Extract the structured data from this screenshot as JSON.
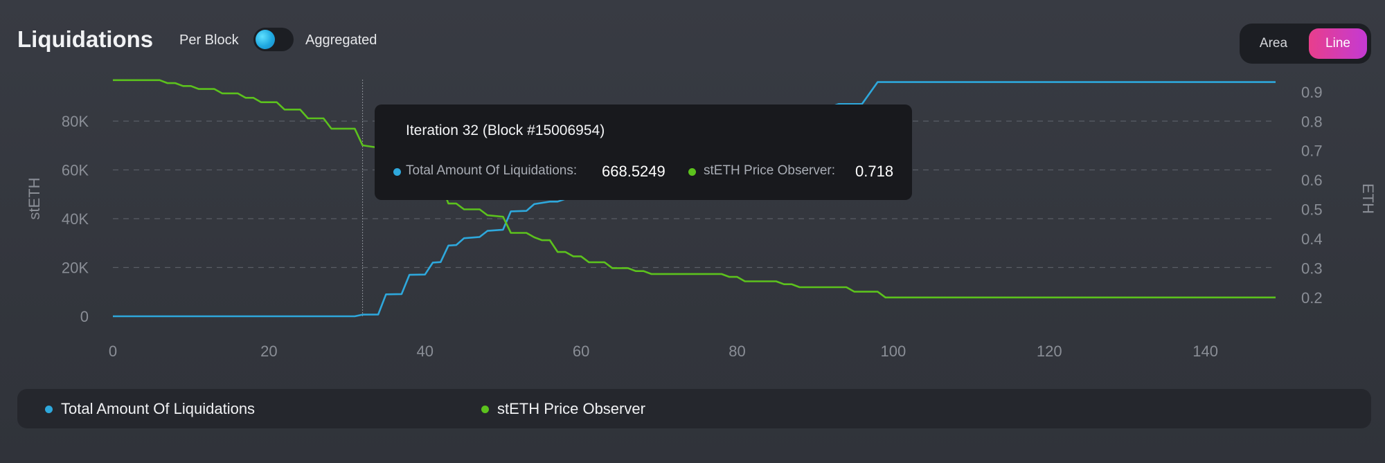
{
  "header": {
    "title": "Liquidations",
    "toggle_left_label": "Per Block",
    "toggle_right_label": "Aggregated",
    "mode_area_label": "Area",
    "mode_line_label": "Line"
  },
  "colors": {
    "liquidations": "#2ea8dc",
    "price": "#5cc21d",
    "accent": "#e83e8c"
  },
  "tooltip": {
    "title": "Iteration 32 (Block #15006954)",
    "series1_label": "Total Amount Of Liquidations:",
    "series1_value": "668.5249",
    "series2_label": "stETH Price Observer:",
    "series2_value": "0.718",
    "x": 32
  },
  "legend": {
    "item1": "Total Amount Of Liquidations",
    "item2": "stETH Price Observer"
  },
  "chart_data": {
    "type": "line",
    "xlim": [
      0,
      149
    ],
    "x_ticks": [
      "0",
      "20",
      "40",
      "60",
      "80",
      "100",
      "120",
      "140"
    ],
    "x_tick_values": [
      0,
      20,
      40,
      60,
      80,
      100,
      120,
      140
    ],
    "y_left": {
      "label": "stETH",
      "ticks": [
        "0",
        "20K",
        "40K",
        "60K",
        "80K"
      ],
      "tick_values": [
        0,
        20000,
        40000,
        60000,
        80000
      ],
      "lim": [
        0,
        96000
      ]
    },
    "y_right": {
      "label": "ETH",
      "ticks": [
        "0.2",
        "0.3",
        "0.4",
        "0.5",
        "0.6",
        "0.7",
        "0.8",
        "0.9"
      ],
      "tick_values": [
        0.2,
        0.3,
        0.4,
        0.5,
        0.6,
        0.7,
        0.8,
        0.9
      ],
      "lim": [
        0.136,
        0.942
      ]
    },
    "grid": "horizontal dashed",
    "legend_position": "bottom",
    "series": [
      {
        "name": "Total Amount Of Liquidations",
        "axis": "left",
        "points": [
          [
            0,
            0
          ],
          [
            31,
            0
          ],
          [
            32,
            668.5
          ],
          [
            34,
            700
          ],
          [
            35,
            9000
          ],
          [
            37,
            9100
          ],
          [
            38,
            17000
          ],
          [
            40,
            17100
          ],
          [
            41,
            22000
          ],
          [
            42,
            22200
          ],
          [
            43,
            29000
          ],
          [
            44,
            29200
          ],
          [
            45,
            32000
          ],
          [
            47,
            32500
          ],
          [
            48,
            35000
          ],
          [
            50,
            35500
          ],
          [
            51,
            43000
          ],
          [
            53,
            43200
          ],
          [
            54,
            46000
          ],
          [
            56,
            47000
          ],
          [
            57,
            47000
          ],
          [
            93,
            87000
          ],
          [
            96,
            87000
          ],
          [
            98,
            96000
          ],
          [
            149,
            96000
          ]
        ]
      },
      {
        "name": "stETH Price Observer",
        "axis": "right",
        "points": [
          [
            0,
            0.94
          ],
          [
            6,
            0.94
          ],
          [
            7,
            0.93
          ],
          [
            8,
            0.93
          ],
          [
            9,
            0.92
          ],
          [
            10,
            0.92
          ],
          [
            11,
            0.91
          ],
          [
            13,
            0.91
          ],
          [
            14,
            0.895
          ],
          [
            16,
            0.895
          ],
          [
            17,
            0.88
          ],
          [
            18,
            0.88
          ],
          [
            19,
            0.865
          ],
          [
            21,
            0.865
          ],
          [
            22,
            0.84
          ],
          [
            24,
            0.84
          ],
          [
            25,
            0.81
          ],
          [
            27,
            0.81
          ],
          [
            28,
            0.775
          ],
          [
            31,
            0.775
          ],
          [
            32,
            0.718
          ],
          [
            34,
            0.71
          ],
          [
            42,
            0.59
          ],
          [
            43,
            0.52
          ],
          [
            44,
            0.52
          ],
          [
            45,
            0.5
          ],
          [
            47,
            0.5
          ],
          [
            48,
            0.48
          ],
          [
            50,
            0.475
          ],
          [
            51,
            0.42
          ],
          [
            53,
            0.42
          ],
          [
            54,
            0.405
          ],
          [
            55,
            0.395
          ],
          [
            56,
            0.395
          ],
          [
            57,
            0.355
          ],
          [
            58,
            0.355
          ],
          [
            59,
            0.34
          ],
          [
            60,
            0.34
          ],
          [
            61,
            0.32
          ],
          [
            63,
            0.32
          ],
          [
            64,
            0.3
          ],
          [
            66,
            0.3
          ],
          [
            67,
            0.29
          ],
          [
            68,
            0.29
          ],
          [
            69,
            0.28
          ],
          [
            78,
            0.28
          ],
          [
            79,
            0.27
          ],
          [
            80,
            0.27
          ],
          [
            81,
            0.255
          ],
          [
            85,
            0.255
          ],
          [
            86,
            0.245
          ],
          [
            87,
            0.245
          ],
          [
            88,
            0.235
          ],
          [
            94,
            0.235
          ],
          [
            95,
            0.22
          ],
          [
            98,
            0.22
          ],
          [
            99,
            0.2
          ],
          [
            149,
            0.2
          ]
        ]
      }
    ]
  }
}
